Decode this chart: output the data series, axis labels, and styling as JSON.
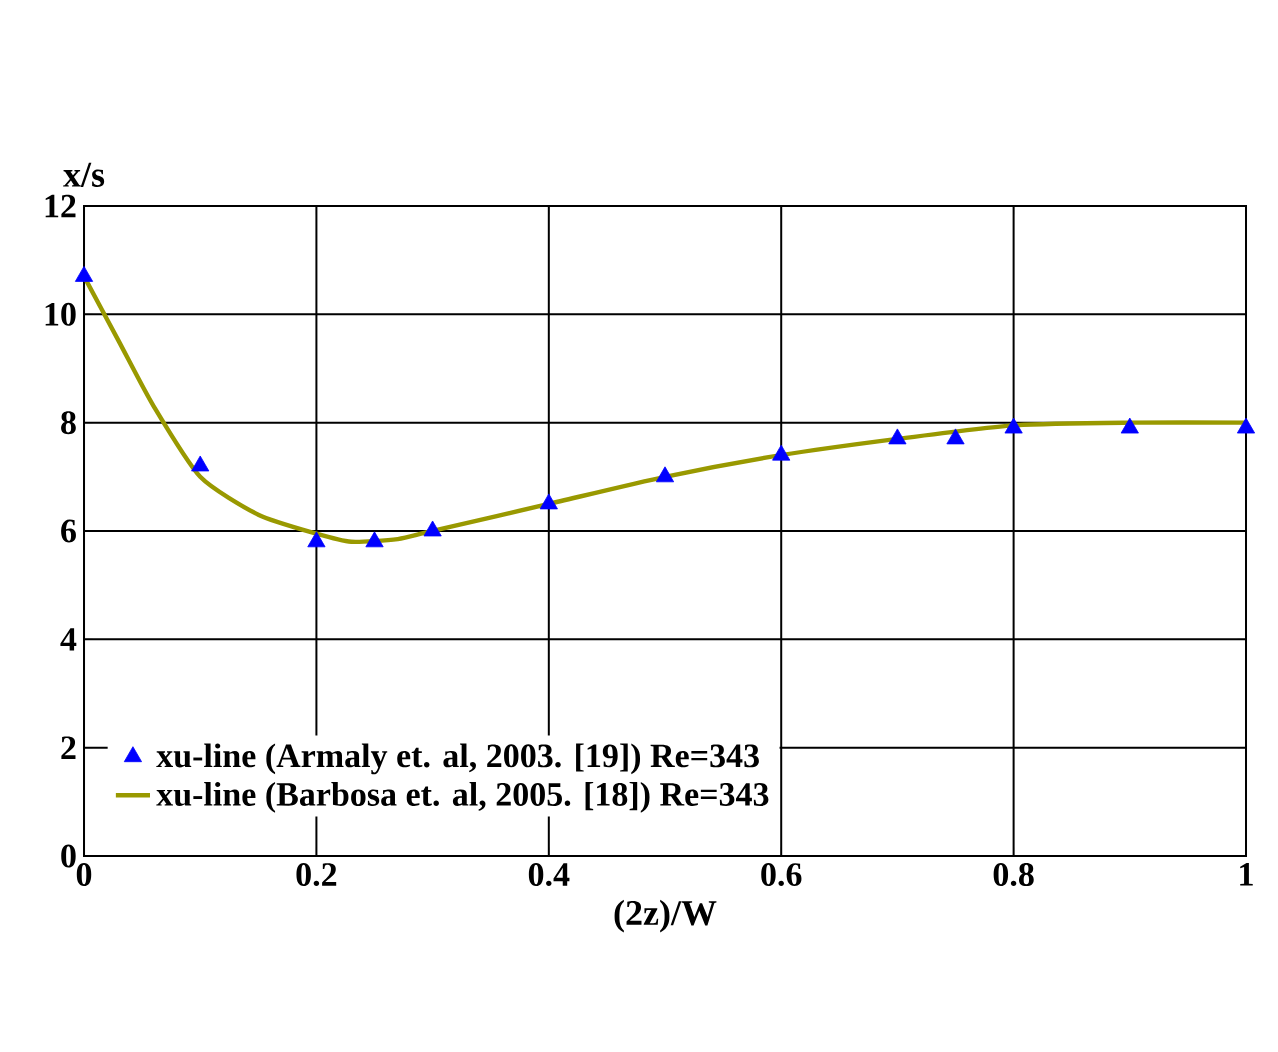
{
  "chart_data": {
    "type": "line",
    "xlabel": "(2z)/W",
    "ylabel": "x/s",
    "series": [
      {
        "name": "xu-line (Armaly et. al, 2003. [19]) Re=343",
        "type": "scatter",
        "marker": "triangle",
        "color": "#0000ff",
        "x": [
          0,
          0.1,
          0.2,
          0.25,
          0.3,
          0.4,
          0.5,
          0.6,
          0.7,
          0.75,
          0.8,
          0.9,
          1.0
        ],
        "values": [
          10.7,
          7.2,
          5.8,
          5.8,
          6.0,
          6.5,
          7.0,
          7.4,
          7.7,
          7.7,
          7.9,
          7.9,
          7.9
        ]
      },
      {
        "name": "xu-line (Barbosa et. al, 2005. [18]) Re=343",
        "color": "#999900",
        "x": [
          0,
          0.03,
          0.06,
          0.1,
          0.15,
          0.2,
          0.23,
          0.27,
          0.3,
          0.4,
          0.5,
          0.6,
          0.7,
          0.8,
          0.9,
          1.0
        ],
        "values": [
          10.7,
          9.5,
          8.3,
          7.0,
          6.3,
          5.95,
          5.8,
          5.85,
          6.0,
          6.5,
          7.0,
          7.4,
          7.7,
          7.95,
          8.0,
          8.0
        ]
      }
    ],
    "xlim": [
      0,
      1
    ],
    "ylim": [
      0,
      12
    ],
    "xticks": [
      0,
      0.2,
      0.4,
      0.6,
      0.8,
      1
    ],
    "yticks": [
      0,
      2,
      4,
      6,
      8,
      10,
      12
    ],
    "grid": true,
    "legend": "bottom"
  }
}
